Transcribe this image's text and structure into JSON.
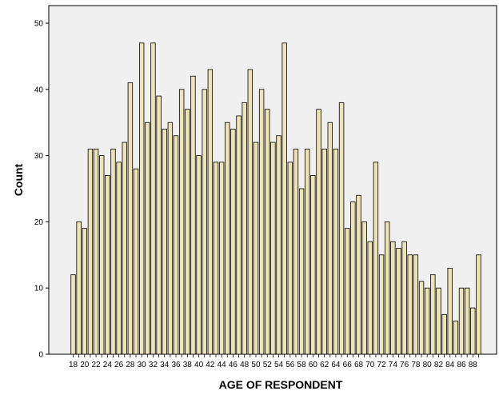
{
  "chart_data": {
    "type": "bar",
    "title": "",
    "xlabel": "AGE OF RESPONDENT",
    "ylabel": "Count",
    "ylim": [
      0,
      50
    ],
    "yticks": [
      0,
      10,
      20,
      30,
      40,
      50
    ],
    "grid": false,
    "legend": "none",
    "categories": [
      18,
      19,
      20,
      21,
      22,
      23,
      24,
      25,
      26,
      27,
      28,
      29,
      30,
      31,
      32,
      33,
      34,
      35,
      36,
      37,
      38,
      39,
      40,
      41,
      42,
      43,
      44,
      45,
      46,
      47,
      48,
      49,
      50,
      51,
      52,
      53,
      54,
      55,
      56,
      57,
      58,
      59,
      60,
      61,
      62,
      63,
      64,
      65,
      66,
      67,
      68,
      69,
      70,
      71,
      72,
      73,
      74,
      75,
      76,
      77,
      78,
      79,
      80,
      81,
      82,
      83,
      84,
      85,
      86,
      87,
      88,
      89
    ],
    "values": [
      12,
      20,
      19,
      31,
      31,
      30,
      27,
      31,
      29,
      32,
      41,
      28,
      47,
      35,
      47,
      39,
      34,
      35,
      33,
      40,
      37,
      42,
      30,
      40,
      43,
      29,
      29,
      35,
      34,
      36,
      38,
      43,
      32,
      40,
      37,
      32,
      33,
      47,
      29,
      31,
      25,
      31,
      27,
      37,
      31,
      35,
      31,
      38,
      19,
      23,
      24,
      20,
      17,
      29,
      15,
      20,
      17,
      16,
      17,
      15,
      15,
      11,
      10,
      12,
      10,
      6,
      13,
      5,
      10,
      10,
      7,
      15
    ],
    "xtick_labels": [
      "18",
      "20",
      "22",
      "24",
      "26",
      "28",
      "30",
      "32",
      "34",
      "36",
      "38",
      "40",
      "42",
      "44",
      "46",
      "48",
      "50",
      "52",
      "54",
      "56",
      "58",
      "60",
      "62",
      "64",
      "66",
      "68",
      "70",
      "72",
      "74",
      "76",
      "78",
      "80",
      "82",
      "84",
      "86",
      "88"
    ],
    "colors": {
      "bar_fill": "#ece4b6",
      "bar_stroke": "#000000",
      "plot_background": "#f0f0f0"
    }
  }
}
